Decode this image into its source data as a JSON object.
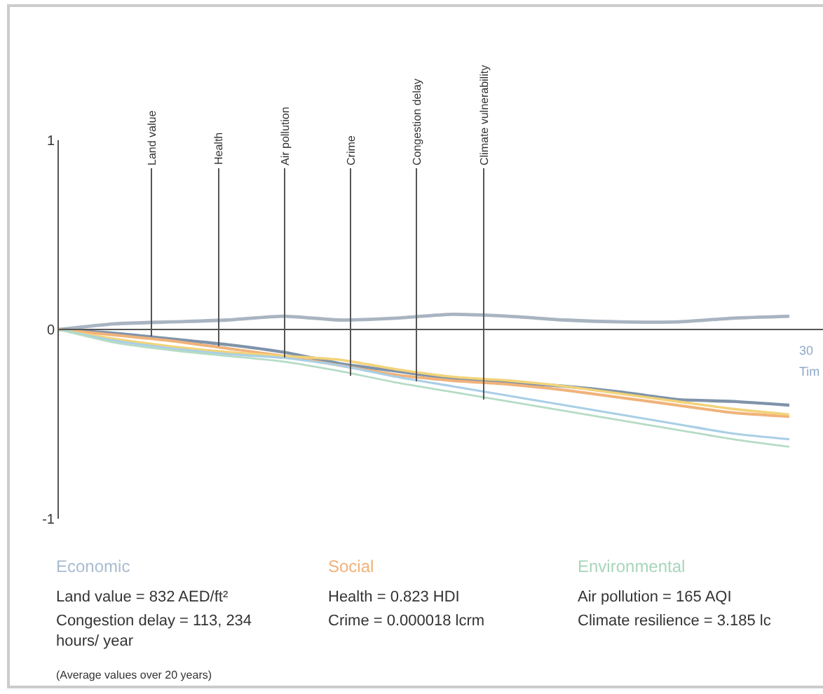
{
  "chart_data": {
    "type": "line",
    "categories": [
      null,
      null,
      null,
      null,
      null,
      null,
      null,
      null,
      null,
      null,
      null,
      null,
      null,
      null
    ],
    "series": [
      {
        "color": "#a9b4c2",
        "values": [
          0,
          0.03,
          0.04,
          0.05,
          0.07,
          0.05,
          0.06,
          0.08,
          0.07,
          0.05,
          0.04,
          0.04,
          0.06,
          0.07
        ]
      },
      {
        "color": "#7f93aa",
        "values": [
          0,
          -0.02,
          -0.05,
          -0.08,
          -0.12,
          -0.18,
          -0.22,
          -0.26,
          -0.28,
          -0.3,
          -0.33,
          -0.37,
          -0.38,
          -0.4
        ]
      },
      {
        "color": "#f0b27a",
        "values": [
          0,
          -0.03,
          -0.06,
          -0.1,
          -0.14,
          -0.19,
          -0.24,
          -0.27,
          -0.29,
          -0.32,
          -0.36,
          -0.4,
          -0.44,
          -0.46
        ]
      },
      {
        "color": "#f2d37a",
        "values": [
          0,
          -0.05,
          -0.09,
          -0.12,
          -0.14,
          -0.16,
          -0.21,
          -0.25,
          -0.27,
          -0.3,
          -0.34,
          -0.38,
          -0.42,
          -0.45
        ]
      },
      {
        "color": "#a9cfe6",
        "values": [
          0,
          -0.06,
          -0.1,
          -0.13,
          -0.15,
          -0.19,
          -0.25,
          -0.3,
          -0.35,
          -0.4,
          -0.45,
          -0.5,
          -0.55,
          -0.58
        ]
      },
      {
        "color": "#b5dcc5",
        "values": [
          0,
          -0.07,
          -0.11,
          -0.14,
          -0.17,
          -0.22,
          -0.28,
          -0.33,
          -0.38,
          -0.43,
          -0.48,
          -0.53,
          -0.58,
          -0.62
        ]
      }
    ],
    "ylim": [
      -1,
      1
    ],
    "yticks": [
      -1,
      0,
      1
    ],
    "tick_labels": "y",
    "marker": "none",
    "line_style": "solid",
    "annotations": [
      "Land value",
      "Health",
      "Air pollution",
      "Crime",
      "Congestion delay",
      "Climate vulnerability",
      "Economic",
      "Social",
      "Environmental",
      "Land value = 832 AED/ft²",
      "Congestion delay = 113, 234 hours/ year",
      "Health = 0.823 HDI",
      "Crime = 0.000018 lcrm",
      "Air pollution = 165 AQI",
      "Climate resilience = 3.185 lc",
      "(Average values over 20 years)",
      "30",
      "Tim"
    ]
  }
}
